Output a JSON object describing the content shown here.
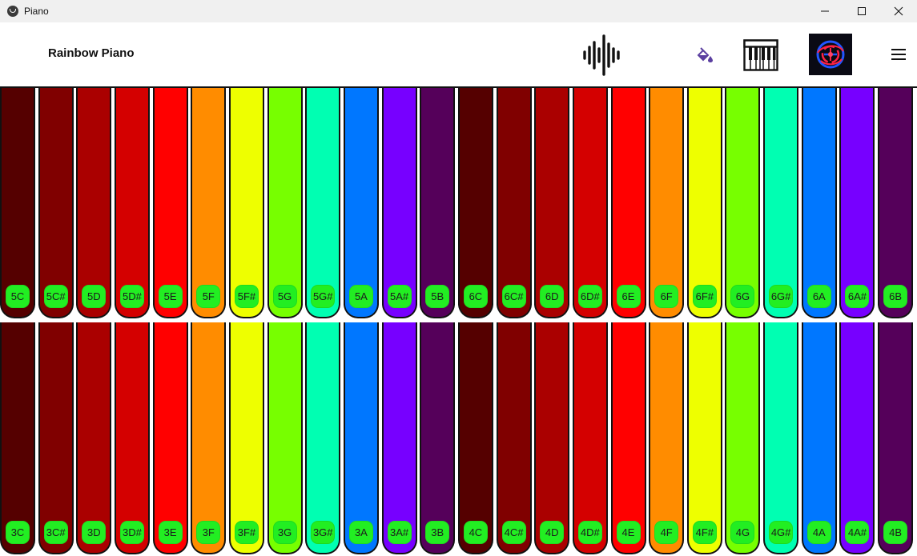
{
  "window": {
    "title": "Piano"
  },
  "header": {
    "app_title": "Rainbow Piano",
    "icons": [
      "sound-wave-icon",
      "paint-bucket-icon",
      "piano-keys-icon",
      "logo-icon",
      "menu-icon"
    ]
  },
  "colors": {
    "label_bg": "#22ee22",
    "key_sequence": [
      "#550000",
      "#800000",
      "#aa0000",
      "#d40000",
      "#ff0000",
      "#ff8c00",
      "#eeff00",
      "#77ff00",
      "#00ffb2",
      "#0077ff",
      "#7700ff",
      "#55005a"
    ]
  },
  "top_row": {
    "keys": [
      {
        "label": "5C",
        "color": "#550000"
      },
      {
        "label": "5C#",
        "color": "#800000"
      },
      {
        "label": "5D",
        "color": "#aa0000"
      },
      {
        "label": "5D#",
        "color": "#d40000"
      },
      {
        "label": "5E",
        "color": "#ff0000"
      },
      {
        "label": "5F",
        "color": "#ff8c00"
      },
      {
        "label": "5F#",
        "color": "#eeff00"
      },
      {
        "label": "5G",
        "color": "#77ff00"
      },
      {
        "label": "5G#",
        "color": "#00ffb2"
      },
      {
        "label": "5A",
        "color": "#0077ff"
      },
      {
        "label": "5A#",
        "color": "#7700ff"
      },
      {
        "label": "5B",
        "color": "#55005a"
      },
      {
        "label": "6C",
        "color": "#550000"
      },
      {
        "label": "6C#",
        "color": "#800000"
      },
      {
        "label": "6D",
        "color": "#aa0000"
      },
      {
        "label": "6D#",
        "color": "#d40000"
      },
      {
        "label": "6E",
        "color": "#ff0000"
      },
      {
        "label": "6F",
        "color": "#ff8c00"
      },
      {
        "label": "6F#",
        "color": "#eeff00"
      },
      {
        "label": "6G",
        "color": "#77ff00"
      },
      {
        "label": "6G#",
        "color": "#00ffb2"
      },
      {
        "label": "6A",
        "color": "#0077ff"
      },
      {
        "label": "6A#",
        "color": "#7700ff"
      },
      {
        "label": "6B",
        "color": "#55005a"
      }
    ]
  },
  "bottom_row": {
    "keys": [
      {
        "label": "3C",
        "color": "#550000"
      },
      {
        "label": "3C#",
        "color": "#800000"
      },
      {
        "label": "3D",
        "color": "#aa0000"
      },
      {
        "label": "3D#",
        "color": "#d40000"
      },
      {
        "label": "3E",
        "color": "#ff0000"
      },
      {
        "label": "3F",
        "color": "#ff8c00"
      },
      {
        "label": "3F#",
        "color": "#eeff00"
      },
      {
        "label": "3G",
        "color": "#77ff00"
      },
      {
        "label": "3G#",
        "color": "#00ffb2"
      },
      {
        "label": "3A",
        "color": "#0077ff"
      },
      {
        "label": "3A#",
        "color": "#7700ff"
      },
      {
        "label": "3B",
        "color": "#55005a"
      },
      {
        "label": "4C",
        "color": "#550000"
      },
      {
        "label": "4C#",
        "color": "#800000"
      },
      {
        "label": "4D",
        "color": "#aa0000"
      },
      {
        "label": "4D#",
        "color": "#d40000"
      },
      {
        "label": "4E",
        "color": "#ff0000"
      },
      {
        "label": "4F",
        "color": "#ff8c00"
      },
      {
        "label": "4F#",
        "color": "#eeff00"
      },
      {
        "label": "4G",
        "color": "#77ff00"
      },
      {
        "label": "4G#",
        "color": "#00ffb2"
      },
      {
        "label": "4A",
        "color": "#0077ff"
      },
      {
        "label": "4A#",
        "color": "#7700ff"
      },
      {
        "label": "4B",
        "color": "#55005a"
      }
    ]
  }
}
